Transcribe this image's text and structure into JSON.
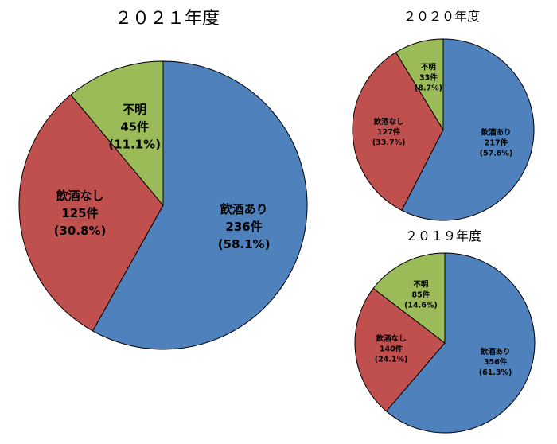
{
  "chart_data": [
    {
      "type": "pie",
      "title": "２０２１年度",
      "series": [
        {
          "name": "飲酒あり",
          "value": 236,
          "count_label": "236件",
          "percent_label": "(58.1%)",
          "color": "#4F81BD"
        },
        {
          "name": "飲酒なし",
          "value": 125,
          "count_label": "125件",
          "percent_label": "(30.8%)",
          "color": "#C0504D"
        },
        {
          "name": "不明",
          "value": 45,
          "count_label": "45件",
          "percent_label": "(11.1%)",
          "color": "#9BBB59"
        }
      ]
    },
    {
      "type": "pie",
      "title": "２０２０年度",
      "series": [
        {
          "name": "飲酒あり",
          "value": 217,
          "count_label": "217件",
          "percent_label": "(57.6%)",
          "color": "#4F81BD"
        },
        {
          "name": "飲酒なし",
          "value": 127,
          "count_label": "127件",
          "percent_label": "(33.7%)",
          "color": "#C0504D"
        },
        {
          "name": "不明",
          "value": 33,
          "count_label": "33件",
          "percent_label": "(8.7%)",
          "color": "#9BBB59"
        }
      ]
    },
    {
      "type": "pie",
      "title": "２０１９年度",
      "series": [
        {
          "name": "飲酒あり",
          "value": 356,
          "count_label": "356件",
          "percent_label": "(61.3%)",
          "color": "#4F81BD"
        },
        {
          "name": "飲酒なし",
          "value": 140,
          "count_label": "140件",
          "percent_label": "(24.1%)",
          "color": "#C0504D"
        },
        {
          "name": "不明",
          "value": 85,
          "count_label": "85件",
          "percent_label": "(14.6%)",
          "color": "#9BBB59"
        }
      ]
    }
  ]
}
